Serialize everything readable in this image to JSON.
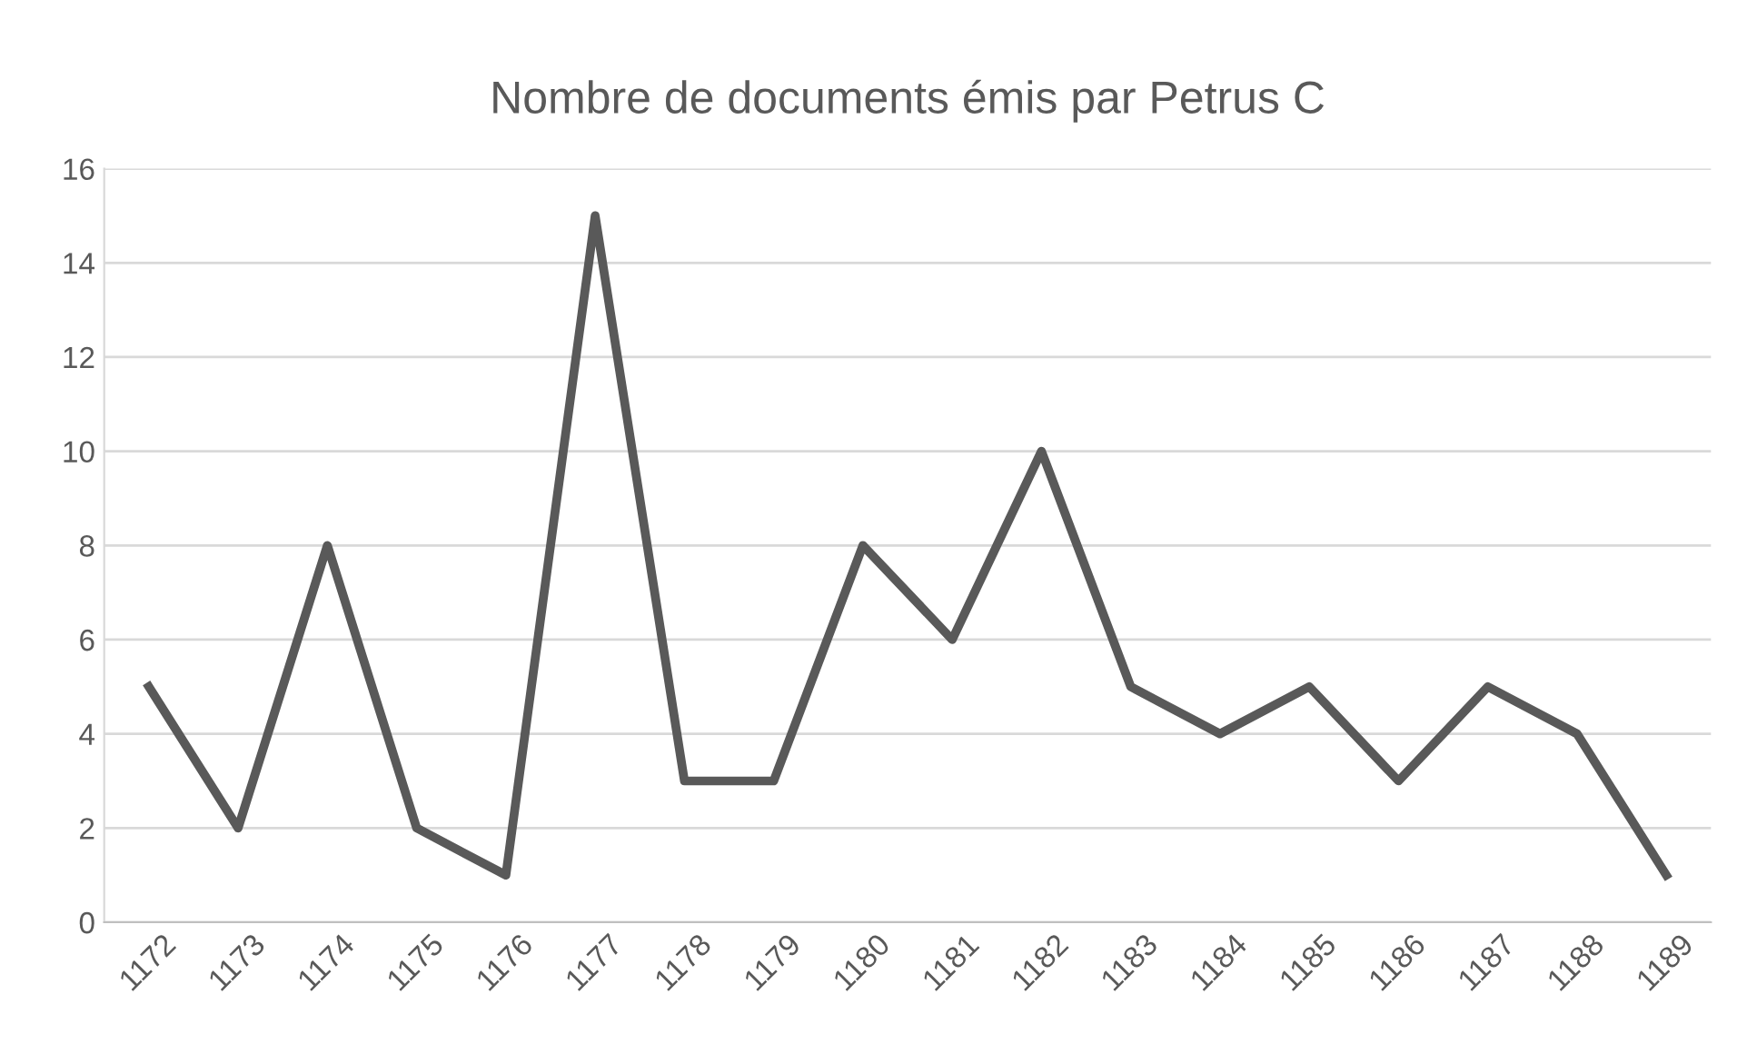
{
  "chart_data": {
    "type": "line",
    "title": "Nombre de documents émis par Petrus C",
    "categories": [
      "1172",
      "1173",
      "1174",
      "1175",
      "1176",
      "1177",
      "1178",
      "1179",
      "1180",
      "1181",
      "1182",
      "1183",
      "1184",
      "1185",
      "1186",
      "1187",
      "1188",
      "1189"
    ],
    "series": [
      {
        "color": "#595959",
        "values": [
          5,
          2,
          8,
          2,
          1,
          15,
          3,
          3,
          8,
          6,
          10,
          5,
          4,
          5,
          3,
          5,
          4,
          1
        ]
      }
    ],
    "ylim": [
      0,
      16
    ],
    "yticks": [
      0,
      2,
      4,
      6,
      8,
      10,
      12,
      14,
      16
    ],
    "grid": "y",
    "legend": false,
    "marker": "none",
    "line_style": "solid"
  }
}
